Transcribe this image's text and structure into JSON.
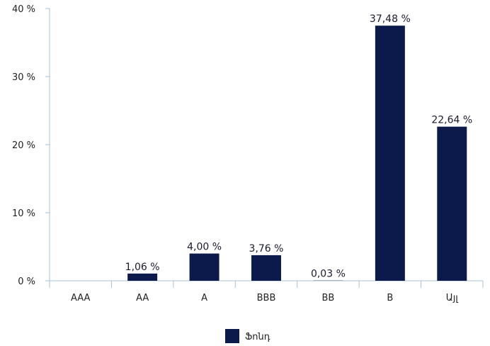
{
  "chart_data": {
    "type": "bar",
    "categories": [
      "AAA",
      "AA",
      "A",
      "BBB",
      "BB",
      "B",
      "Այլ"
    ],
    "series": [
      {
        "name": "Ֆոնդ",
        "values": [
          0,
          1.06,
          4.0,
          3.76,
          0.03,
          37.48,
          22.64
        ],
        "labels": [
          "",
          "1,06 %",
          "4,00 %",
          "3,76 %",
          "0,03 %",
          "37,48 %",
          "22,64 %"
        ],
        "color": "#0b1a4b"
      }
    ],
    "ylim": [
      0,
      40
    ],
    "yticks": [
      0,
      10,
      20,
      30,
      40
    ],
    "ytick_labels": [
      "0 %",
      "10 %",
      "20 %",
      "30 %",
      "40 %"
    ],
    "grid": false,
    "legend": "bottom-center",
    "axis_color": "#a9c0d6"
  }
}
